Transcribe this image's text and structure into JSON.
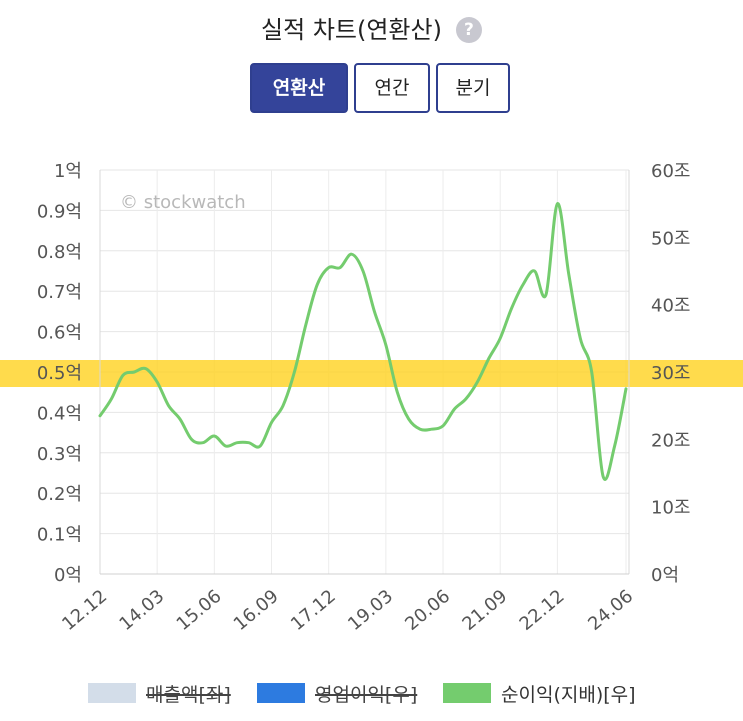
{
  "header": {
    "title": "실적 차트(연환산)",
    "help_icon": "question-circle-icon",
    "help_glyph": "?"
  },
  "tabs": [
    {
      "label": "연환산",
      "active": true
    },
    {
      "label": "연간",
      "active": false
    },
    {
      "label": "분기",
      "active": false
    }
  ],
  "watermark": "© stockwatch",
  "chart_data": {
    "type": "line",
    "title": "실적 차트(연환산)",
    "x_tick_labels": [
      "12.12",
      "14.03",
      "15.06",
      "16.09",
      "17.12",
      "19.03",
      "20.06",
      "21.09",
      "22.12",
      "24.06"
    ],
    "y_left": {
      "tick_labels": [
        "0억",
        "0.1억",
        "0.2억",
        "0.3억",
        "0.4억",
        "0.5억",
        "0.6억",
        "0.7억",
        "0.8억",
        "0.9억",
        "1억"
      ],
      "range": [
        0,
        1
      ]
    },
    "y_right": {
      "tick_labels": [
        "0억",
        "10조",
        "20조",
        "30조",
        "40조",
        "50조",
        "60조"
      ],
      "range": [
        0,
        60
      ]
    },
    "grid": true,
    "legend_position": "bottom",
    "highlight_band": {
      "axis": "left",
      "value": 0.5,
      "color": "#ffd21f"
    },
    "series": [
      {
        "name": "매출액[좌]",
        "color": "#d3dde9",
        "axis": "left",
        "hidden": true,
        "points": []
      },
      {
        "name": "영업이익[우]",
        "color": "#2d7be0",
        "axis": "right",
        "hidden": true,
        "points": []
      },
      {
        "name": "순이익(지배)[우]",
        "color": "#74cc6e",
        "axis": "right",
        "hidden": false,
        "points": [
          [
            "12.12",
            23.5
          ],
          [
            "13.03",
            26.0
          ],
          [
            "13.06",
            29.5
          ],
          [
            "13.09",
            30.0
          ],
          [
            "13.12",
            30.5
          ],
          [
            "14.03",
            28.5
          ],
          [
            "14.06",
            25.0
          ],
          [
            "14.09",
            23.0
          ],
          [
            "14.12",
            20.0
          ],
          [
            "15.03",
            19.5
          ],
          [
            "15.06",
            20.5
          ],
          [
            "15.09",
            19.0
          ],
          [
            "15.12",
            19.5
          ],
          [
            "16.03",
            19.5
          ],
          [
            "16.06",
            19.0
          ],
          [
            "16.09",
            22.5
          ],
          [
            "16.12",
            25.0
          ],
          [
            "17.03",
            30.0
          ],
          [
            "17.06",
            37.0
          ],
          [
            "17.09",
            43.0
          ],
          [
            "17.12",
            45.5
          ],
          [
            "18.03",
            45.5
          ],
          [
            "18.06",
            47.5
          ],
          [
            "18.09",
            45.0
          ],
          [
            "18.12",
            39.0
          ],
          [
            "19.03",
            34.0
          ],
          [
            "19.06",
            27.0
          ],
          [
            "19.09",
            23.0
          ],
          [
            "19.12",
            21.5
          ],
          [
            "20.03",
            21.5
          ],
          [
            "20.06",
            22.0
          ],
          [
            "20.09",
            24.5
          ],
          [
            "20.12",
            26.0
          ],
          [
            "21.03",
            28.5
          ],
          [
            "21.06",
            32.0
          ],
          [
            "21.09",
            35.0
          ],
          [
            "21.12",
            39.5
          ],
          [
            "22.03",
            43.0
          ],
          [
            "22.06",
            45.0
          ],
          [
            "22.09",
            41.5
          ],
          [
            "22.12",
            55.0
          ],
          [
            "23.03",
            44.5
          ],
          [
            "23.06",
            35.0
          ],
          [
            "23.09",
            30.0
          ],
          [
            "23.12",
            14.5
          ],
          [
            "24.03",
            19.0
          ],
          [
            "24.06",
            27.5
          ]
        ]
      }
    ]
  }
}
